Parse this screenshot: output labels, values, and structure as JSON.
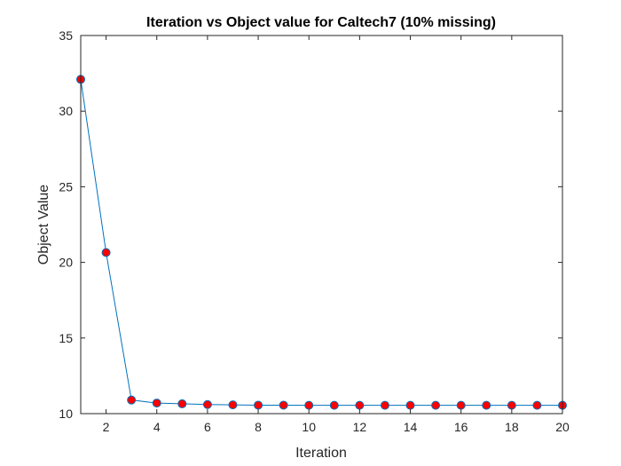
{
  "chart_data": {
    "type": "line",
    "title": "Iteration vs Object value for Caltech7 (10% missing)",
    "xlabel": "Iteration",
    "ylabel": "Object Value",
    "xlim": [
      1,
      20
    ],
    "ylim": [
      10,
      35
    ],
    "xticks": [
      2,
      4,
      6,
      8,
      10,
      12,
      14,
      16,
      18,
      20
    ],
    "yticks": [
      10,
      15,
      20,
      25,
      30,
      35
    ],
    "grid": false,
    "legend": "none",
    "colors": {
      "line": "#0072bd",
      "marker_fill": "#ff0000",
      "marker_edge": "#0072bd",
      "axes": "#262626"
    },
    "series": [
      {
        "x": [
          1,
          2,
          3,
          4,
          5,
          6,
          7,
          8,
          9,
          10,
          11,
          12,
          13,
          14,
          15,
          16,
          17,
          18,
          19,
          20
        ],
        "values": [
          32.1,
          20.65,
          10.9,
          10.7,
          10.65,
          10.6,
          10.58,
          10.56,
          10.56,
          10.55,
          10.55,
          10.55,
          10.55,
          10.55,
          10.55,
          10.55,
          10.55,
          10.55,
          10.55,
          10.55
        ]
      }
    ]
  }
}
